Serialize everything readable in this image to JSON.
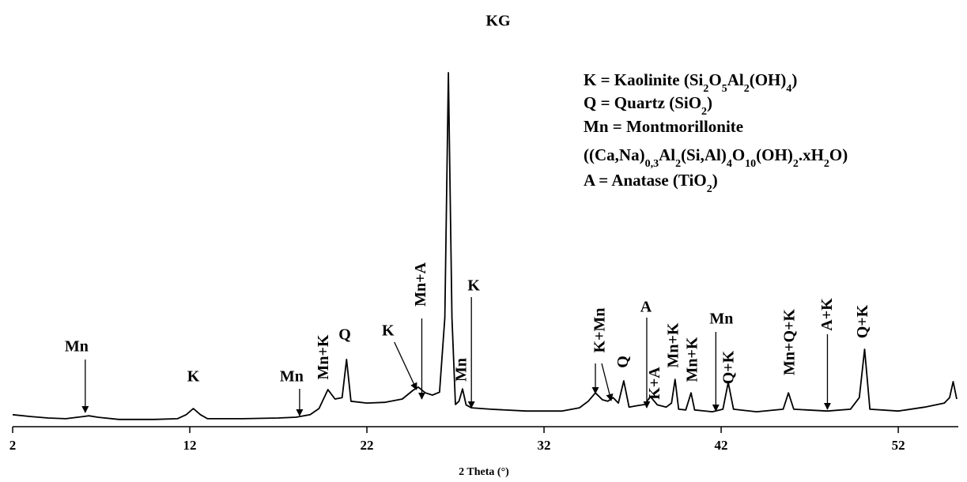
{
  "chart_data": {
    "type": "line",
    "title": "KG",
    "x_label": "2 Theta (°)",
    "xlim": [
      2,
      55.3
    ],
    "ylim": [
      0,
      100
    ],
    "xticks": [
      2,
      12,
      22,
      32,
      42,
      52
    ],
    "color": "#000000",
    "x": [
      2.0,
      3,
      4,
      5,
      6,
      6.3,
      6.8,
      8,
      10,
      11.3,
      11.8,
      12.2,
      12.6,
      13,
      15,
      17,
      18,
      18.8,
      19.3,
      19.8,
      20.2,
      20.6,
      20.85,
      21.1,
      22,
      23,
      24,
      24.6,
      24.9,
      25.3,
      25.7,
      26.1,
      26.4,
      26.6,
      26.8,
      27.0,
      27.2,
      27.4,
      27.6,
      27.9,
      29,
      31,
      33,
      34,
      34.5,
      34.9,
      35.3,
      35.6,
      35.9,
      36.2,
      36.5,
      36.8,
      37.3,
      37.7,
      38.0,
      38.4,
      38.9,
      39.2,
      39.4,
      39.6,
      40.0,
      40.3,
      40.5,
      41.5,
      42.1,
      42.4,
      42.7,
      44,
      45.5,
      45.8,
      46.1,
      48,
      49.3,
      49.8,
      50.1,
      50.4,
      52,
      53.5,
      54.6,
      54.9,
      55.1,
      55.3
    ],
    "y": [
      3.3,
      2.8,
      2.4,
      2.2,
      2.8,
      3.0,
      2.6,
      2.0,
      2.0,
      2.2,
      3.3,
      5.0,
      3.3,
      2.2,
      2.2,
      2.4,
      2.6,
      3.3,
      5.0,
      10.2,
      7.6,
      8.0,
      18.5,
      7.0,
      6.5,
      6.7,
      7.6,
      10.0,
      10.9,
      9.3,
      8.7,
      9.5,
      30,
      97.4,
      30,
      6.1,
      7.0,
      10.4,
      6.0,
      5.2,
      4.8,
      4.3,
      4.3,
      5.2,
      7.0,
      9.3,
      7.4,
      7.0,
      8.0,
      6.5,
      12.6,
      5.4,
      5.8,
      6.1,
      8.3,
      6.0,
      5.4,
      6.5,
      13.0,
      4.8,
      4.6,
      9.3,
      4.6,
      4.1,
      4.8,
      12.2,
      4.8,
      4.1,
      4.8,
      9.3,
      4.8,
      4.3,
      4.8,
      8,
      21.3,
      4.8,
      4.3,
      5.4,
      6.5,
      8,
      12.4,
      7.6
    ],
    "annotations": [
      {
        "text": "Mn",
        "x": 6.1
      },
      {
        "text": "K",
        "x": 12.2
      },
      {
        "text": "Mn",
        "x": 18.2
      },
      {
        "text": "Mn+K",
        "x": 19.7
      },
      {
        "text": "Q",
        "x": 20.75
      },
      {
        "text": "K",
        "x": 24.8
      },
      {
        "text": "Mn+A",
        "x": 25.1
      },
      {
        "text": "Mn",
        "x": 27.4
      },
      {
        "text": "K",
        "x": 27.9
      },
      {
        "text": "K+Mn",
        "x": 34.9
      },
      {
        "text": "Q",
        "x": 36.4
      },
      {
        "text": "A",
        "x": 37.8
      },
      {
        "text": "K+A",
        "x": 38.3
      },
      {
        "text": "Mn+K",
        "x": 39.4
      },
      {
        "text": "Mn+K",
        "x": 40.3
      },
      {
        "text": "Mn",
        "x": 41.7
      },
      {
        "text": "Q+K",
        "x": 42.4
      },
      {
        "text": "Mn+Q+K",
        "x": 45.75
      },
      {
        "text": "A+K",
        "x": 48.0
      },
      {
        "text": "Q+K",
        "x": 50.0
      }
    ],
    "key": [
      "K = Kaolinite (Si2O5Al2(OH)4)",
      "Q = Quartz (SiO2)",
      "Mn = Montmorillonite",
      "((Ca,Na)0,3Al2(Si,Al)4O10(OH)2.xH2O)",
      "A = Anatase (TiO2)"
    ]
  }
}
